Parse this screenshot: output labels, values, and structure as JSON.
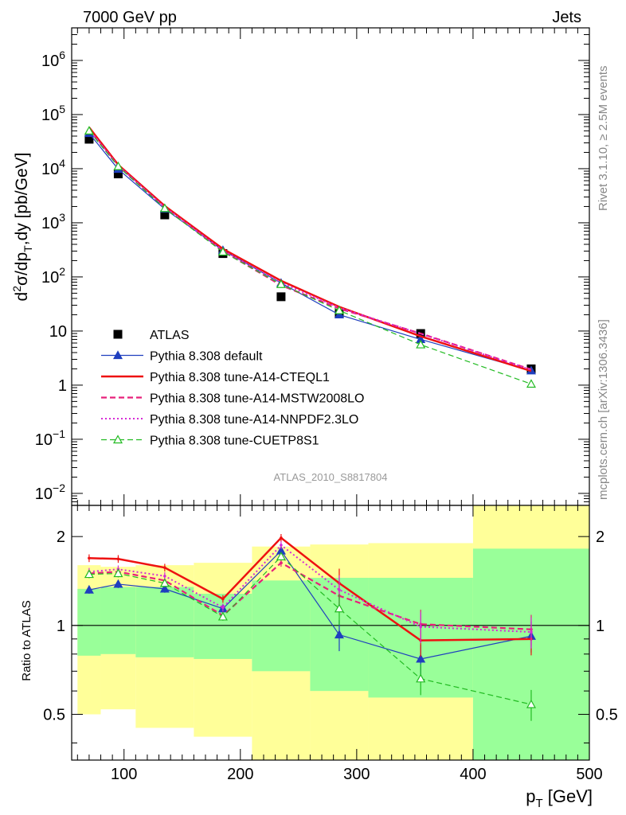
{
  "header": {
    "left": "7000 GeV pp",
    "right": "Jets"
  },
  "side_text": {
    "rivet": "Rivet 3.1.10, ≥ 2.5M events",
    "source": "mcplots.cern.ch [arXiv:1306.3436]"
  },
  "analysis_id": "ATLAS_2010_S8817804",
  "colors": {
    "atlas": "#000000",
    "default": "#1f3fbf",
    "a14_cteql1": "#ee1111",
    "a14_mstw": "#e8207a",
    "a14_nnpdf": "#d62ad6",
    "cuetp8s1": "#22bb22",
    "band_inner": "#99ff99",
    "band_outer": "#ffff99"
  },
  "chart_data": [
    {
      "type": "scatter",
      "panel": "main",
      "ylabel": "d²σ/dp_T,dy [pb/GeV]",
      "yscale": "log",
      "ylim": [
        0.006,
        4000000
      ],
      "xlim": [
        55,
        500
      ],
      "legend_position": "center-left",
      "y_ticks": [
        {
          "value": 0.01,
          "base": "10",
          "exp": "−2"
        },
        {
          "value": 0.1,
          "base": "10",
          "exp": "−1"
        },
        {
          "value": 1,
          "base": "1",
          "exp": ""
        },
        {
          "value": 10,
          "base": "10",
          "exp": ""
        },
        {
          "value": 100,
          "base": "10",
          "exp": "2"
        },
        {
          "value": 1000,
          "base": "10",
          "exp": "3"
        },
        {
          "value": 10000,
          "base": "10",
          "exp": "4"
        },
        {
          "value": 100000,
          "base": "10",
          "exp": "5"
        },
        {
          "value": 1000000,
          "base": "10",
          "exp": "6"
        }
      ],
      "x": [
        70,
        95,
        135,
        185,
        235,
        285,
        355,
        450
      ],
      "series": [
        {
          "name": "ATLAS",
          "key": "atlas",
          "style": "data",
          "values": [
            35000,
            8000,
            1400,
            270,
            43,
            21,
            9,
            2
          ]
        },
        {
          "name": "Pythia 8.308 default",
          "key": "default",
          "style": "solid-thin",
          "marker": "triangle-filled",
          "values": [
            45000,
            9800,
            1800,
            310,
            77,
            20,
            7,
            1.85
          ]
        },
        {
          "name": "Pythia 8.308 tune-A14-CTEQL1",
          "key": "a14_cteql1",
          "style": "solid-thick",
          "values": [
            58000,
            11800,
            2050,
            330,
            85,
            28,
            8,
            1.82
          ]
        },
        {
          "name": "Pythia 8.308 tune-A14-MSTW2008LO",
          "key": "a14_mstw",
          "style": "dashed",
          "values": [
            52000,
            11200,
            1900,
            300,
            70,
            26,
            9,
            1.95
          ]
        },
        {
          "name": "Pythia 8.308 tune-A14-NNPDF2.3LO",
          "key": "a14_nnpdf",
          "style": "dotted",
          "values": [
            53000,
            11300,
            1950,
            310,
            78,
            27,
            8.9,
            1.92
          ]
        },
        {
          "name": "Pythia 8.308 tune-CUETP8S1",
          "key": "cuetp8s1",
          "style": "dashed",
          "marker": "triangle-open",
          "values": [
            50000,
            11000,
            1850,
            290,
            73,
            24,
            5.6,
            1.05
          ]
        }
      ]
    },
    {
      "type": "line",
      "panel": "ratio",
      "xlabel": "p_T [GeV]",
      "ylabel": "Ratio to ATLAS",
      "yscale": "log",
      "ylim": [
        0.35,
        2.55
      ],
      "xlim": [
        55,
        500
      ],
      "x_ticks": [
        100,
        200,
        300,
        400,
        500
      ],
      "y_ticks": [
        0.5,
        1,
        2
      ],
      "x": [
        70,
        95,
        135,
        185,
        235,
        285,
        355,
        450
      ],
      "bins": [
        [
          60,
          80
        ],
        [
          80,
          110
        ],
        [
          110,
          160
        ],
        [
          160,
          210
        ],
        [
          210,
          260
        ],
        [
          260,
          310
        ],
        [
          310,
          400
        ],
        [
          400,
          500
        ]
      ],
      "band_inner": [
        [
          0.79,
          1.33
        ],
        [
          0.8,
          1.35
        ],
        [
          0.78,
          1.35
        ],
        [
          0.77,
          1.28
        ],
        [
          0.7,
          1.42
        ],
        [
          0.6,
          1.45
        ],
        [
          0.57,
          1.45
        ],
        [
          0.35,
          1.82
        ]
      ],
      "band_outer": [
        [
          0.5,
          1.6
        ],
        [
          0.52,
          1.58
        ],
        [
          0.45,
          1.6
        ],
        [
          0.42,
          1.63
        ],
        [
          0.35,
          1.85
        ],
        [
          0.35,
          1.88
        ],
        [
          0.35,
          1.9
        ],
        [
          0.35,
          2.55
        ]
      ],
      "series": [
        {
          "name": "Pythia 8.308 default",
          "key": "default",
          "values": [
            1.32,
            1.38,
            1.33,
            1.14,
            1.79,
            0.93,
            0.77,
            0.92
          ]
        },
        {
          "name": "Pythia 8.308 tune-A14-CTEQL1",
          "key": "a14_cteql1",
          "values": [
            1.69,
            1.68,
            1.57,
            1.23,
            1.98,
            1.39,
            0.89,
            0.9
          ]
        },
        {
          "name": "Pythia 8.308 tune-A14-MSTW2008LO",
          "key": "a14_mstw",
          "values": [
            1.5,
            1.52,
            1.42,
            1.08,
            1.63,
            1.26,
            1.01,
            0.97
          ]
        },
        {
          "name": "Pythia 8.308 tune-A14-NNPDF2.3LO",
          "key": "a14_nnpdf",
          "values": [
            1.52,
            1.55,
            1.47,
            1.15,
            1.87,
            1.32,
            0.99,
            0.95
          ]
        },
        {
          "name": "Pythia 8.308 tune-CUETP8S1",
          "key": "cuetp8s1",
          "values": [
            1.49,
            1.5,
            1.39,
            1.07,
            1.71,
            1.14,
            0.66,
            0.54
          ]
        }
      ]
    }
  ]
}
